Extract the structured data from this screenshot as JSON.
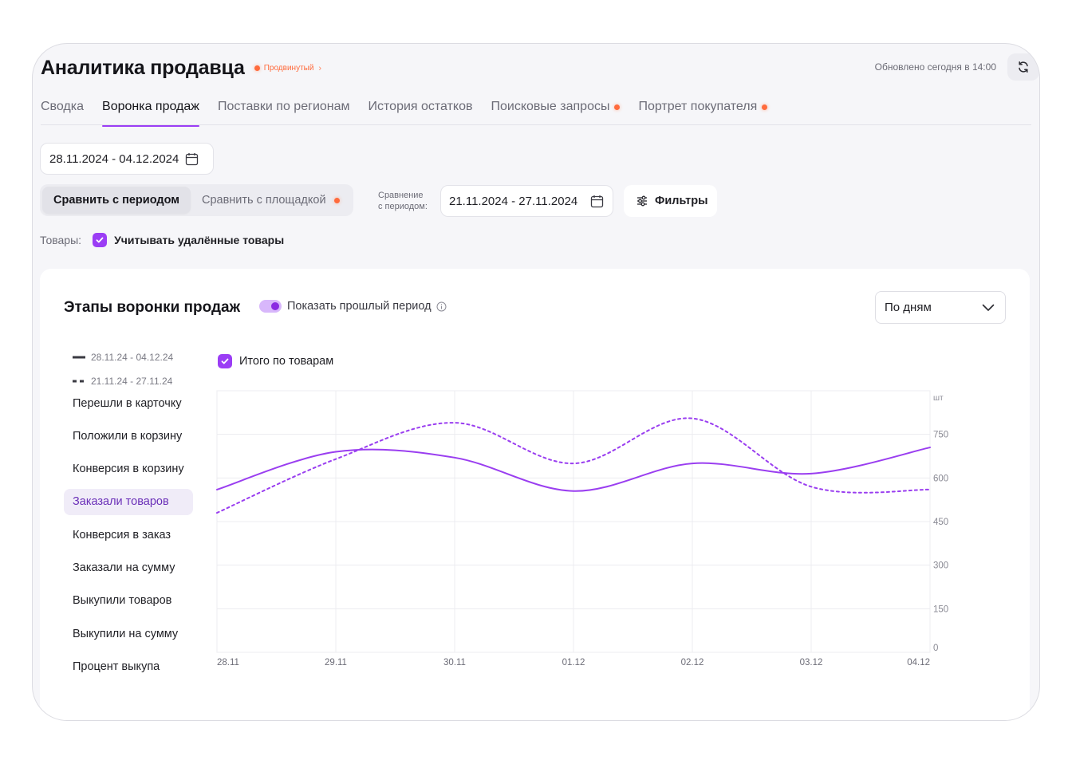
{
  "header": {
    "title": "Аналитика продавца",
    "plan_badge": "Продвинутый",
    "updated": "Обновлено сегодня в 14:00"
  },
  "tabs": [
    {
      "label": "Сводка",
      "active": false,
      "dot": false
    },
    {
      "label": "Воронка продаж",
      "active": true,
      "dot": false
    },
    {
      "label": "Поставки по регионам",
      "active": false,
      "dot": false
    },
    {
      "label": "История остатков",
      "active": false,
      "dot": false
    },
    {
      "label": "Поисковые запросы",
      "active": false,
      "dot": true
    },
    {
      "label": "Портрет покупателя",
      "active": false,
      "dot": true
    }
  ],
  "controls": {
    "date_range": "28.11.2024 - 04.12.2024",
    "compare_period_label": "Сравнить с периодом",
    "compare_platform_label": "Сравнить с площадкой",
    "compare_with_line1": "Сравнение",
    "compare_with_line2": "с периодом:",
    "compare_range": "21.11.2024 - 27.11.2024",
    "filters_label": "Фильтры",
    "goods_label": "Товары:",
    "include_deleted_label": "Учитывать удалённые товары",
    "include_deleted_checked": true
  },
  "card": {
    "title": "Этапы воронки продаж",
    "show_previous_label": "Показать прошлый период",
    "show_previous_on": true,
    "granularity": "По дням",
    "legend": {
      "current": "28.11.24 - 04.12.24",
      "previous": "21.11.24 - 27.11.24"
    },
    "total_label": "Итого по товарам",
    "total_checked": true,
    "metrics": [
      "Перешли в карточку",
      "Положили в корзину",
      "Конверсия в корзину",
      "Заказали товаров",
      "Конверсия в заказ",
      "Заказали на сумму",
      "Выкупили товаров",
      "Выкупили на сумму",
      "Процент выкупа"
    ],
    "active_metric": "Заказали товаров"
  },
  "colors": {
    "accent": "#9b3df5",
    "series": "#9a3ef0",
    "badge": "#ff6b3d"
  },
  "chart_data": {
    "type": "line",
    "x": [
      "28.11",
      "29.11",
      "30.11",
      "01.12",
      "02.12",
      "03.12",
      "04.12"
    ],
    "y_unit": "шт",
    "y_ticks": [
      0,
      150,
      300,
      450,
      600,
      750
    ],
    "ylim": [
      0,
      900
    ],
    "grid": true,
    "y_axis_side": "right",
    "series": [
      {
        "name": "28.11.24 - 04.12.24",
        "style": "solid",
        "values": [
          560,
          690,
          670,
          555,
          650,
          615,
          705
        ]
      },
      {
        "name": "21.11.24 - 27.11.24",
        "style": "dashed",
        "values": [
          480,
          665,
          790,
          650,
          805,
          570,
          560
        ]
      }
    ]
  }
}
